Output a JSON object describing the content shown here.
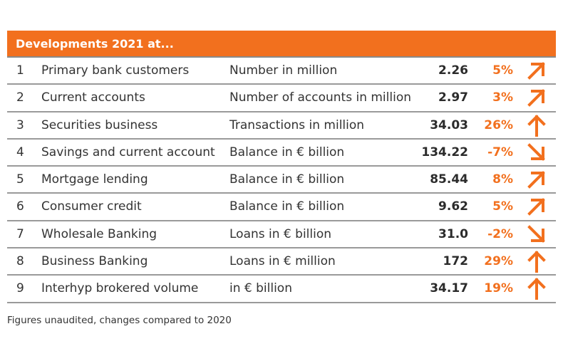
{
  "header": {
    "title": "Developments 2021 at..."
  },
  "rows": [
    {
      "num": "1",
      "item": "Primary bank customers",
      "unit": "Number in million",
      "value": "2.26",
      "change": "5%",
      "trend": "up-right"
    },
    {
      "num": "2",
      "item": "Current accounts",
      "unit": "Number of accounts in million",
      "value": "2.97",
      "change": "3%",
      "trend": "up-right"
    },
    {
      "num": "3",
      "item": "Securities business",
      "unit": "Transactions in million",
      "value": "34.03",
      "change": "26%",
      "trend": "up"
    },
    {
      "num": "4",
      "item": "Savings and current account",
      "unit": "Balance in € billion",
      "value": "134.22",
      "change": "-7%",
      "trend": "down-right"
    },
    {
      "num": "5",
      "item": "Mortgage lending",
      "unit": "Balance in € billion",
      "value": "85.44",
      "change": "8%",
      "trend": "up-right"
    },
    {
      "num": "6",
      "item": "Consumer credit",
      "unit": "Balance in € billion",
      "value": "9.62",
      "change": "5%",
      "trend": "up-right"
    },
    {
      "num": "7",
      "item": "Wholesale Banking",
      "unit": "Loans in € billion",
      "value": "31.0",
      "change": "-2%",
      "trend": "down-right"
    },
    {
      "num": "8",
      "item": "Business Banking",
      "unit": "Loans in € million",
      "value": "172",
      "change": "29%",
      "trend": "up"
    },
    {
      "num": "9",
      "item": "Interhyp brokered volume",
      "unit": "in € billion",
      "value": "34.17",
      "change": "19%",
      "trend": "up"
    }
  ],
  "footnote": "Figures unaudited, changes compared to 2020",
  "colors": {
    "accent": "#f2701e",
    "rule": "#9a9a9a"
  }
}
